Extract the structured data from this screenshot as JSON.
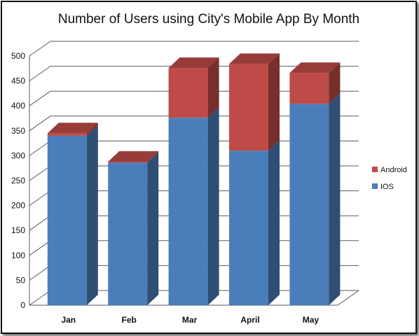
{
  "chart_data": {
    "type": "bar",
    "stacked": true,
    "three_d": true,
    "title": "Number of Users using City's Mobile App By Month",
    "categories": [
      "Jan",
      "Feb",
      "Mar",
      "April",
      "May"
    ],
    "series": [
      {
        "name": "IOS",
        "color": "#4a7ebb",
        "values": [
          340,
          286,
          376,
          310,
          404
        ]
      },
      {
        "name": "Android",
        "color": "#be4b48",
        "values": [
          5,
          2,
          100,
          174,
          62
        ]
      }
    ],
    "ylim": [
      0,
      500
    ],
    "yticks": [
      "0",
      "50",
      "100",
      "150",
      "200",
      "250",
      "300",
      "350",
      "400",
      "450",
      "500"
    ],
    "grid": true,
    "legend": {
      "position": "right",
      "entries": [
        "Android",
        "IOS"
      ]
    }
  }
}
